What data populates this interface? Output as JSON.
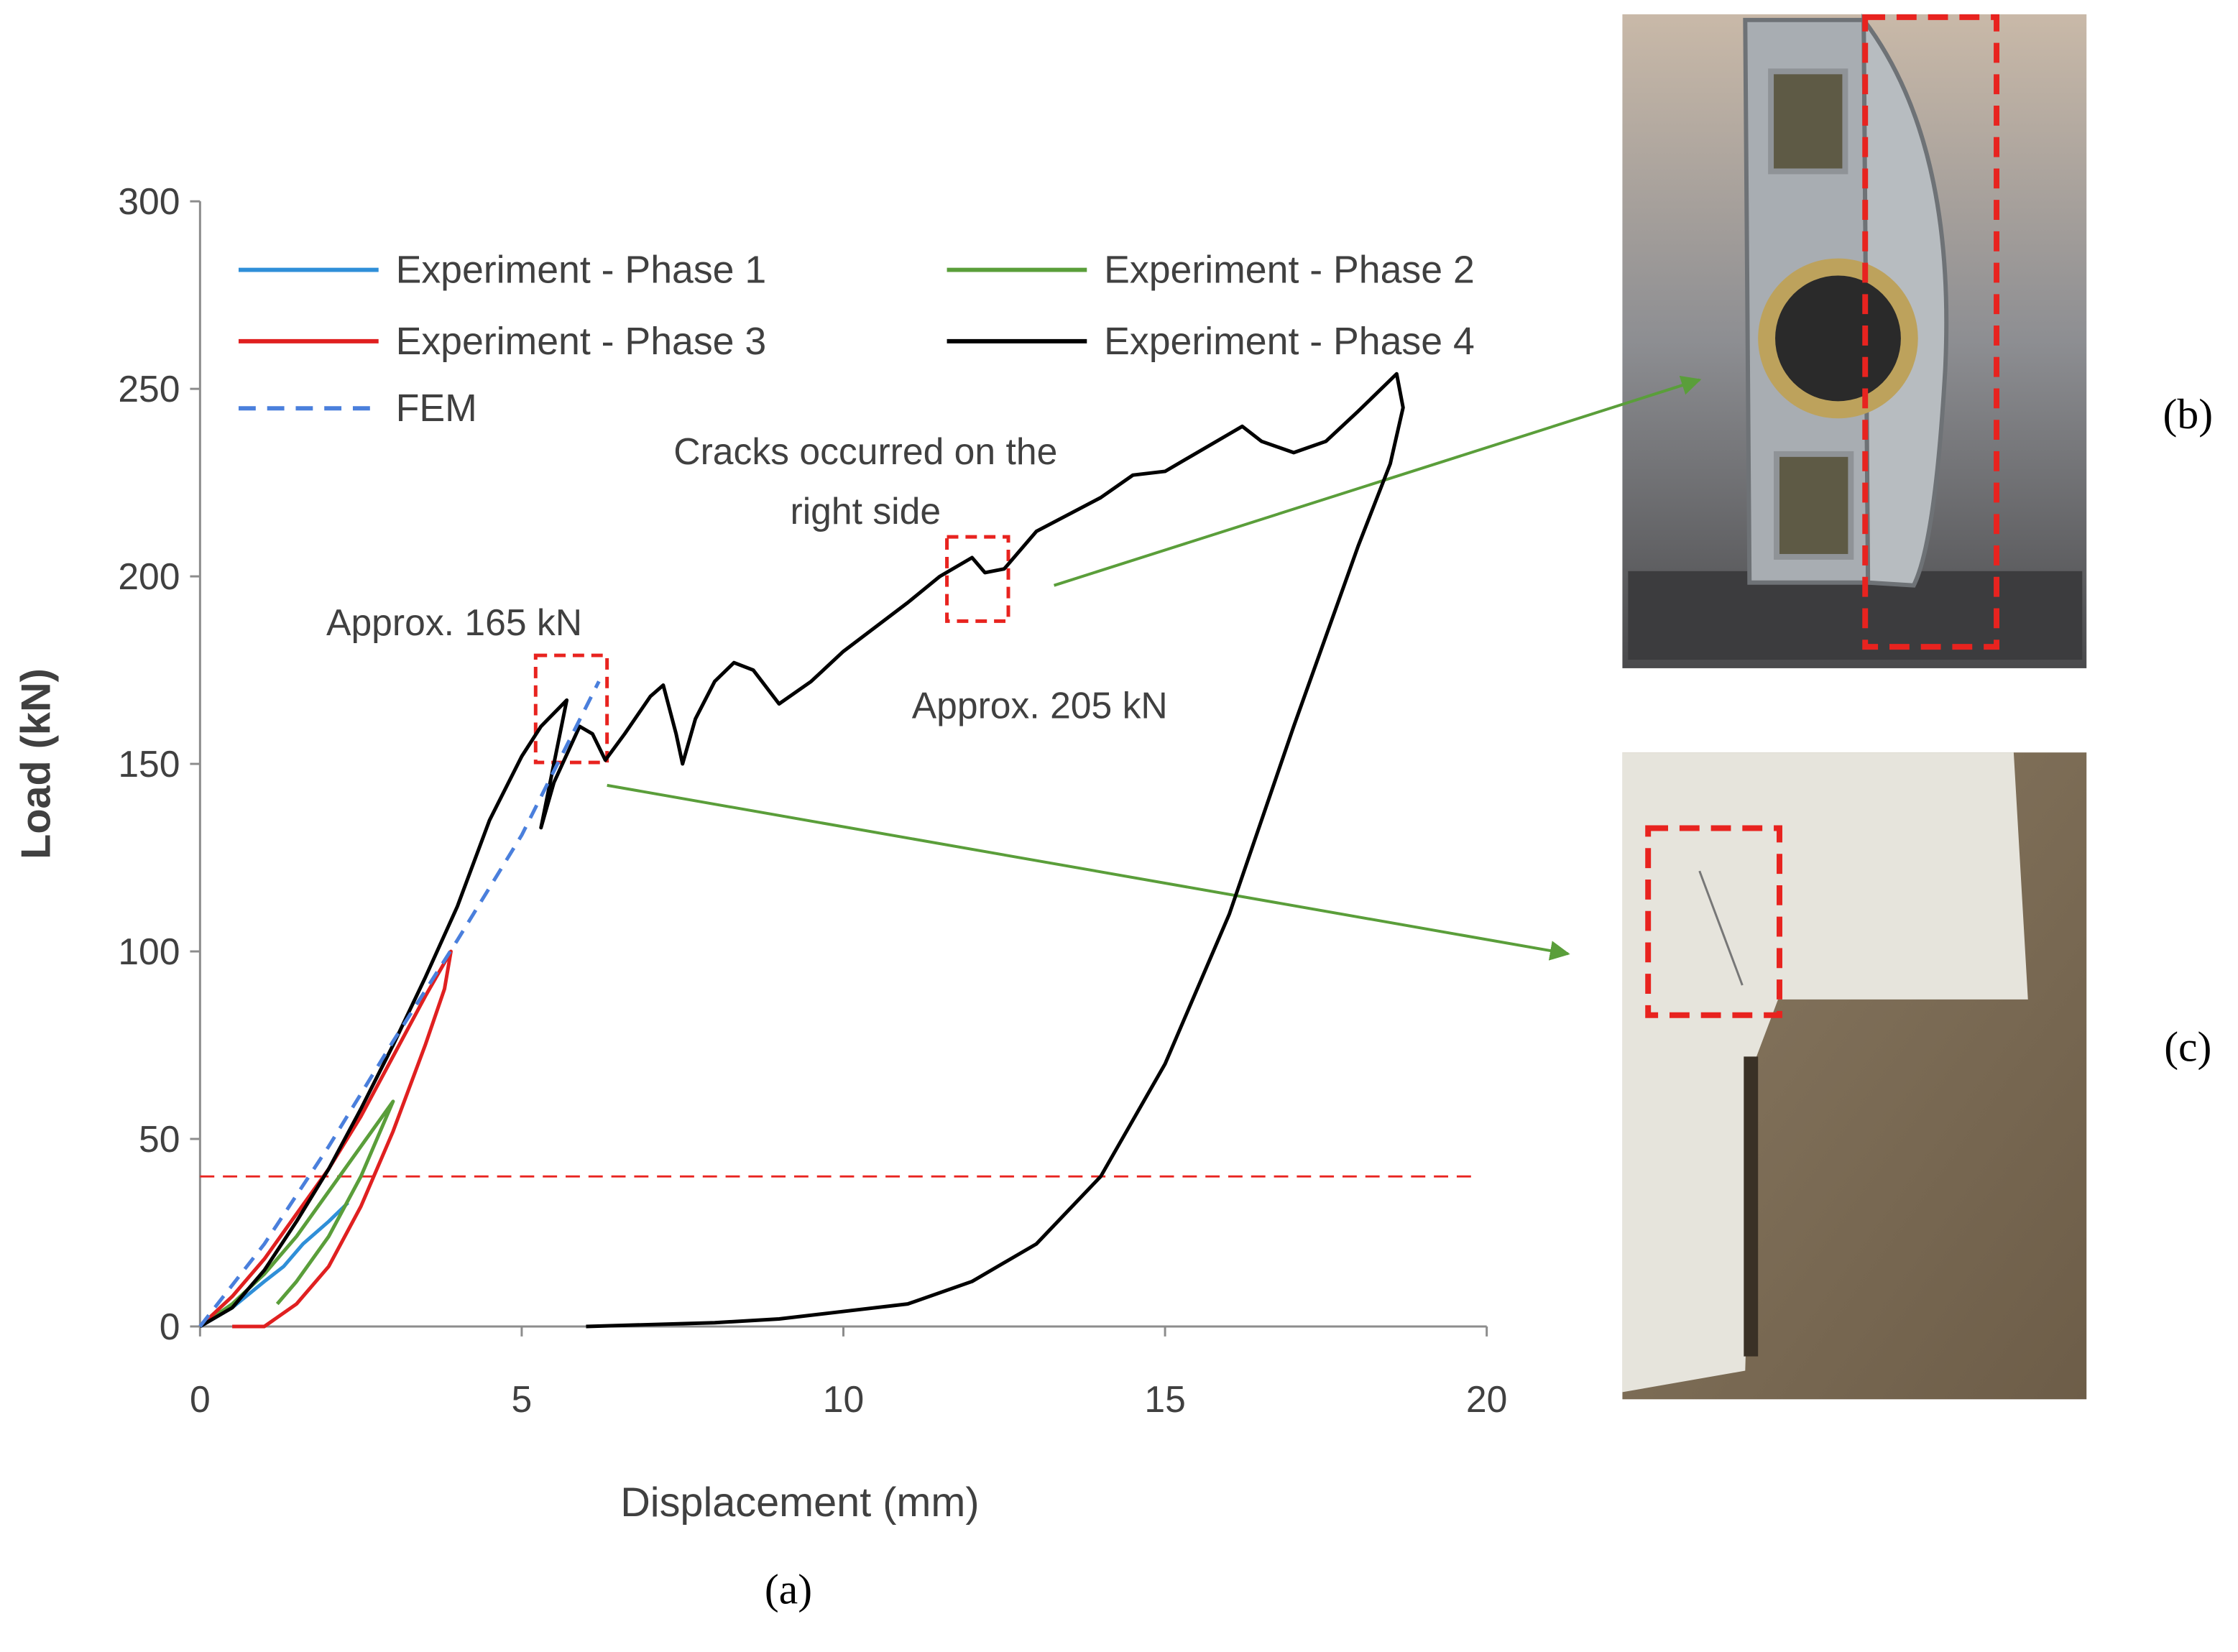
{
  "chart_data": {
    "type": "line",
    "xlabel": "Displacement (mm)",
    "ylabel": "Load (kN)",
    "xlim": [
      0,
      20
    ],
    "xticks": [
      0,
      5,
      10,
      15,
      20
    ],
    "ylim": [
      0,
      300
    ],
    "yticks": [
      0,
      50,
      100,
      150,
      200,
      250,
      300
    ],
    "hline": {
      "value": 40,
      "color": "#e8231f"
    },
    "series": [
      {
        "name": "Experiment - Phase 1",
        "color": "#2f8fd8",
        "dashed": false,
        "x": [
          0,
          0.5,
          1,
          1.3,
          1.6,
          2,
          2.3
        ],
        "values": [
          0,
          5,
          12,
          16,
          22,
          28,
          33
        ]
      },
      {
        "name": "Experiment - Phase 2",
        "color": "#5a9e3a",
        "dashed": false,
        "x": [
          0,
          0.5,
          1,
          1.5,
          2,
          2.5,
          3,
          2.8,
          2.5,
          2,
          1.5,
          1.2
        ],
        "values": [
          0,
          6,
          14,
          24,
          36,
          48,
          60,
          52,
          40,
          24,
          12,
          6
        ]
      },
      {
        "name": "Experiment - Phase 3",
        "color": "#e02020",
        "dashed": false,
        "x": [
          0,
          0.5,
          1,
          1.5,
          2,
          2.5,
          3,
          3.5,
          3.9,
          3.8,
          3.5,
          3,
          2.5,
          2,
          1.5,
          1,
          0.5
        ],
        "values": [
          0,
          8,
          18,
          30,
          42,
          56,
          72,
          88,
          100,
          90,
          75,
          52,
          32,
          16,
          6,
          0,
          0
        ]
      },
      {
        "name": "Experiment - Phase 4",
        "color": "#000000",
        "dashed": false,
        "x": [
          0,
          0.5,
          1,
          1.5,
          2,
          2.5,
          3,
          3.5,
          4,
          4.5,
          5,
          5.3,
          5.7,
          5.3,
          5.5,
          5.9,
          6.1,
          6.3,
          6.6,
          7,
          7.2,
          7.4,
          7.5,
          7.7,
          8,
          8.3,
          8.6,
          9,
          9.5,
          10,
          11,
          11.5,
          12,
          12.2,
          12.5,
          13,
          14,
          14.5,
          15,
          16,
          16.2,
          16.5,
          17,
          17.5,
          18,
          18.6,
          18.7,
          18.5,
          18,
          17,
          16,
          15,
          14,
          13,
          12,
          11,
          10,
          9,
          8,
          6
        ],
        "values": [
          0,
          5,
          15,
          28,
          42,
          58,
          75,
          93,
          112,
          135,
          152,
          160,
          167,
          133,
          145,
          160,
          158,
          151,
          158,
          168,
          171,
          158,
          150,
          162,
          172,
          177,
          175,
          166,
          172,
          180,
          193,
          200,
          205,
          201,
          202,
          212,
          221,
          227,
          228,
          238,
          240,
          236,
          233,
          236,
          244,
          254,
          245,
          230,
          208,
          160,
          110,
          70,
          40,
          22,
          12,
          6,
          4,
          2,
          1,
          0
        ]
      },
      {
        "name": "FEM",
        "color": "#4a7fdc",
        "dashed": true,
        "x": [
          0,
          1,
          2,
          3,
          4,
          5,
          6.2
        ],
        "values": [
          0,
          22,
          48,
          76,
          103,
          131,
          172
        ]
      }
    ],
    "annotations": [
      "Approx. 165 kN",
      "Cracks occurred on the",
      "right side",
      "Approx. 205 kN"
    ]
  },
  "panel_labels": [
    "(a)",
    "(b)",
    "(c)"
  ]
}
